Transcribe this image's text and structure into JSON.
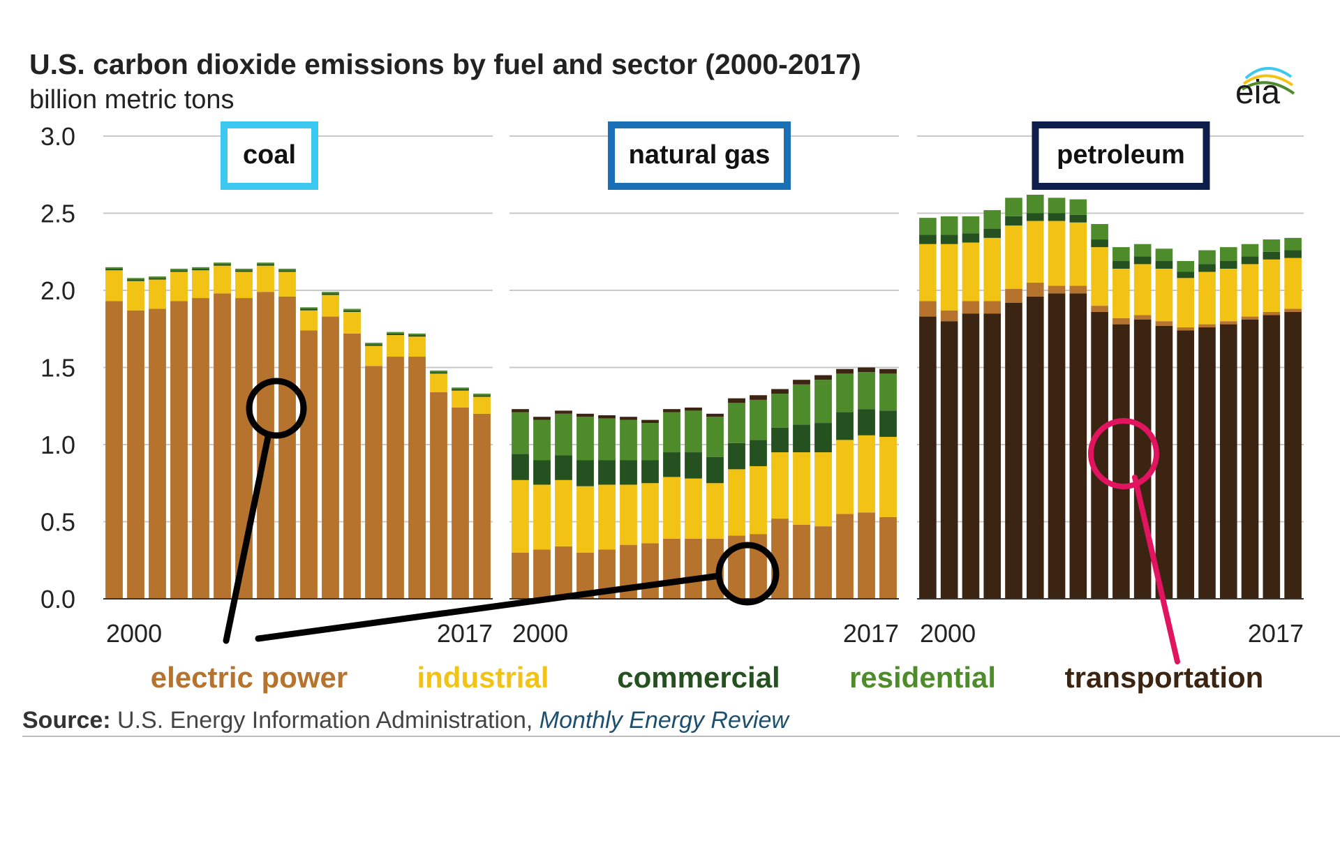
{
  "chart_data": {
    "type": "bar",
    "stacked": true,
    "title": "U.S. carbon dioxide emissions by fuel and sector (2000-2017)",
    "subtitle": "billion metric tons",
    "logo_text": "eia",
    "ylim": [
      0,
      3.0
    ],
    "yticks": [
      "3.0",
      "2.5",
      "2.0",
      "1.5",
      "1.0",
      "0.5",
      "0.0"
    ],
    "ytick_values": [
      3.0,
      2.5,
      2.0,
      1.5,
      1.0,
      0.5,
      0.0
    ],
    "grid": true,
    "legend_position": "bottom",
    "sectors": [
      {
        "key": "electric",
        "name": "electric power",
        "color": "#b5732e"
      },
      {
        "key": "industrial",
        "name": "industrial",
        "color": "#f2c315"
      },
      {
        "key": "commercial",
        "name": "commercial",
        "color": "#25501f"
      },
      {
        "key": "residential",
        "name": "residential",
        "color": "#4e8b2b"
      },
      {
        "key": "transportation",
        "name": "transportation",
        "color": "#3b2411"
      }
    ],
    "years": [
      2000,
      2001,
      2002,
      2003,
      2004,
      2005,
      2006,
      2007,
      2008,
      2009,
      2010,
      2011,
      2012,
      2013,
      2014,
      2015,
      2016,
      2017
    ],
    "panels": [
      {
        "fuel": "coal",
        "label_color": "#3dc8f2",
        "x_start_label": "2000",
        "x_end_label": "2017",
        "series": [
          {
            "name": "electric power",
            "values": [
              1.93,
              1.87,
              1.88,
              1.93,
              1.95,
              1.98,
              1.95,
              1.99,
              1.96,
              1.74,
              1.83,
              1.72,
              1.51,
              1.57,
              1.57,
              1.34,
              1.24,
              1.2
            ]
          },
          {
            "name": "industrial",
            "values": [
              0.2,
              0.19,
              0.19,
              0.19,
              0.18,
              0.18,
              0.17,
              0.17,
              0.16,
              0.13,
              0.14,
              0.14,
              0.13,
              0.14,
              0.13,
              0.12,
              0.11,
              0.11
            ]
          },
          {
            "name": "commercial",
            "values": [
              0.01,
              0.01,
              0.01,
              0.01,
              0.01,
              0.01,
              0.01,
              0.01,
              0.01,
              0.01,
              0.01,
              0.01,
              0.01,
              0.01,
              0.01,
              0.01,
              0.01,
              0.01
            ]
          },
          {
            "name": "residential",
            "values": [
              0.01,
              0.01,
              0.01,
              0.01,
              0.01,
              0.01,
              0.01,
              0.01,
              0.01,
              0.01,
              0.01,
              0.01,
              0.01,
              0.01,
              0.01,
              0.01,
              0.01,
              0.01
            ]
          },
          {
            "name": "transportation",
            "values": [
              0,
              0,
              0,
              0,
              0,
              0,
              0,
              0,
              0,
              0,
              0,
              0,
              0,
              0,
              0,
              0,
              0,
              0
            ]
          }
        ]
      },
      {
        "fuel": "natural gas",
        "label_color": "#1a6fb5",
        "x_start_label": "2000",
        "x_end_label": "2017",
        "series": [
          {
            "name": "electric power",
            "values": [
              0.3,
              0.32,
              0.34,
              0.3,
              0.32,
              0.35,
              0.36,
              0.39,
              0.39,
              0.39,
              0.41,
              0.42,
              0.52,
              0.48,
              0.47,
              0.55,
              0.56,
              0.53
            ]
          },
          {
            "name": "industrial",
            "values": [
              0.47,
              0.42,
              0.43,
              0.43,
              0.42,
              0.39,
              0.39,
              0.4,
              0.39,
              0.36,
              0.43,
              0.44,
              0.43,
              0.47,
              0.48,
              0.48,
              0.5,
              0.52
            ]
          },
          {
            "name": "commercial",
            "values": [
              0.17,
              0.16,
              0.16,
              0.17,
              0.16,
              0.16,
              0.15,
              0.16,
              0.17,
              0.17,
              0.17,
              0.17,
              0.16,
              0.18,
              0.19,
              0.18,
              0.17,
              0.17
            ]
          },
          {
            "name": "residential",
            "values": [
              0.27,
              0.26,
              0.27,
              0.28,
              0.27,
              0.26,
              0.24,
              0.26,
              0.27,
              0.26,
              0.26,
              0.26,
              0.22,
              0.26,
              0.28,
              0.25,
              0.24,
              0.24
            ]
          },
          {
            "name": "transportation",
            "values": [
              0.02,
              0.02,
              0.02,
              0.02,
              0.02,
              0.02,
              0.02,
              0.02,
              0.02,
              0.02,
              0.03,
              0.03,
              0.03,
              0.03,
              0.03,
              0.03,
              0.03,
              0.03
            ]
          }
        ]
      },
      {
        "fuel": "petroleum",
        "label_color": "#0d1e4b",
        "x_start_label": "2000",
        "x_end_label": "2017",
        "series": [
          {
            "name": "transportation",
            "values": [
              1.83,
              1.8,
              1.85,
              1.85,
              1.92,
              1.96,
              1.98,
              1.98,
              1.86,
              1.78,
              1.81,
              1.77,
              1.74,
              1.76,
              1.78,
              1.81,
              1.84,
              1.86
            ]
          },
          {
            "name": "electric power",
            "values": [
              0.1,
              0.07,
              0.08,
              0.08,
              0.09,
              0.09,
              0.05,
              0.05,
              0.04,
              0.04,
              0.03,
              0.03,
              0.02,
              0.02,
              0.02,
              0.02,
              0.02,
              0.02
            ]
          },
          {
            "name": "industrial",
            "values": [
              0.37,
              0.43,
              0.38,
              0.41,
              0.41,
              0.4,
              0.42,
              0.41,
              0.38,
              0.32,
              0.33,
              0.34,
              0.32,
              0.34,
              0.34,
              0.34,
              0.34,
              0.33
            ]
          },
          {
            "name": "commercial",
            "values": [
              0.06,
              0.06,
              0.06,
              0.06,
              0.06,
              0.05,
              0.05,
              0.05,
              0.05,
              0.05,
              0.05,
              0.05,
              0.04,
              0.05,
              0.05,
              0.05,
              0.05,
              0.05
            ]
          },
          {
            "name": "residential",
            "values": [
              0.11,
              0.12,
              0.11,
              0.12,
              0.12,
              0.12,
              0.1,
              0.1,
              0.1,
              0.09,
              0.08,
              0.08,
              0.07,
              0.09,
              0.09,
              0.08,
              0.08,
              0.08
            ]
          }
        ]
      }
    ],
    "annotations": [
      {
        "type": "circle-callout",
        "target": "coal electric power",
        "color": "#000000"
      },
      {
        "type": "circle-callout",
        "target": "natural gas electric power",
        "color": "#000000"
      },
      {
        "type": "circle-callout",
        "target": "petroleum transportation",
        "color": "#e0145f"
      }
    ]
  },
  "source": {
    "label": "Source:",
    "text": " U.S. Energy Information Administration, ",
    "publication": "Monthly Energy Review"
  }
}
